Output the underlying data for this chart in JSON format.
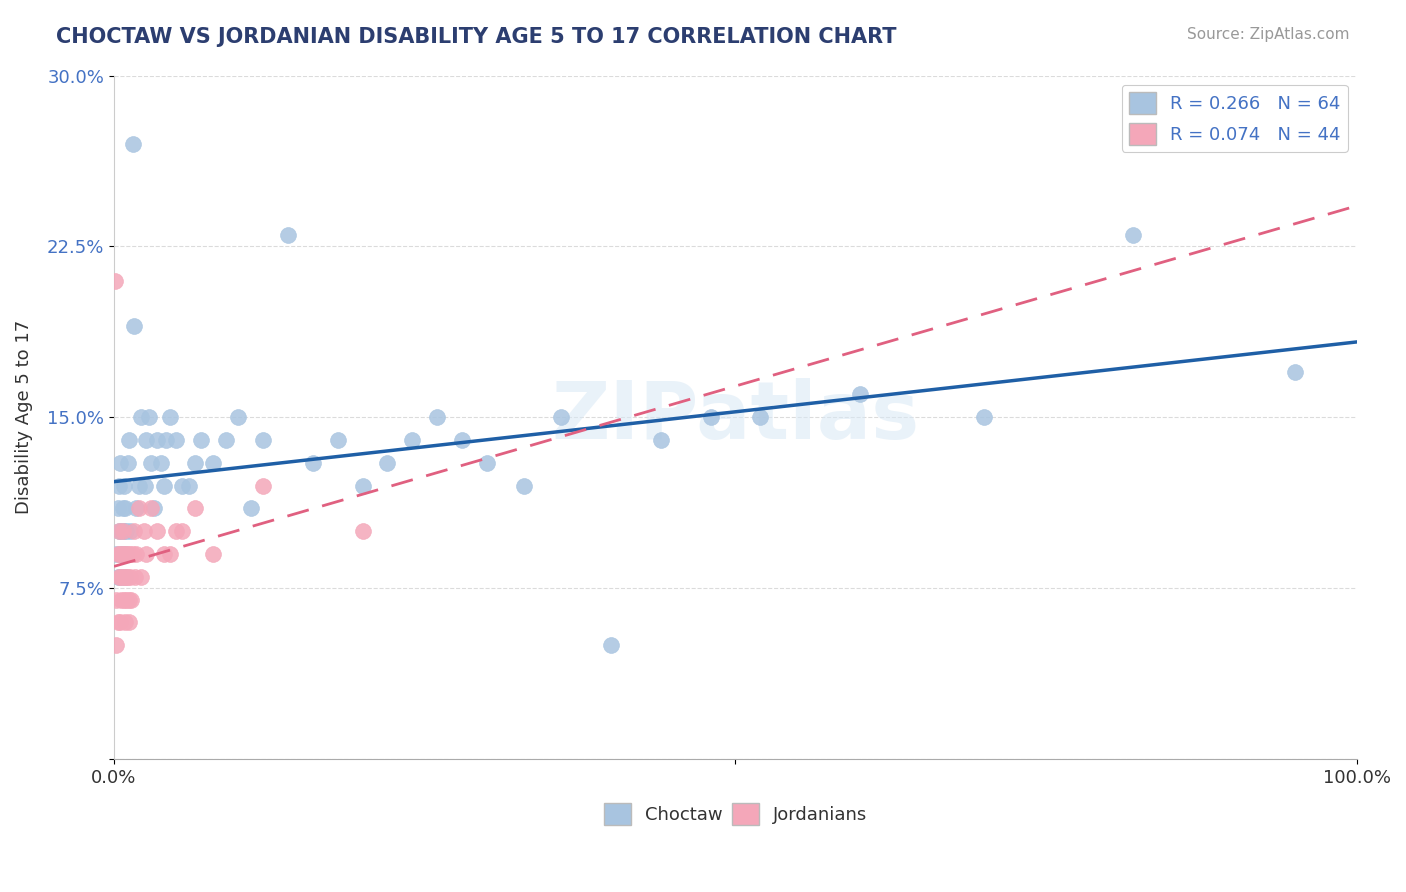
{
  "title": "CHOCTAW VS JORDANIAN DISABILITY AGE 5 TO 17 CORRELATION CHART",
  "source": "Source: ZipAtlas.com",
  "xlabel": "",
  "ylabel": "Disability Age 5 to 17",
  "xlim": [
    0,
    1.0
  ],
  "ylim": [
    0,
    0.3
  ],
  "choctaw_R": 0.266,
  "choctaw_N": 64,
  "jordanian_R": 0.074,
  "jordanian_N": 44,
  "choctaw_color": "#a8c4e0",
  "choctaw_line_color": "#1f5fa6",
  "jordanian_color": "#f4a7b9",
  "jordanian_line_color": "#e06080",
  "background_color": "#ffffff",
  "watermark": "ZIPatlas",
  "choctaw_x": [
    0.002,
    0.003,
    0.003,
    0.004,
    0.004,
    0.005,
    0.005,
    0.006,
    0.006,
    0.007,
    0.007,
    0.008,
    0.008,
    0.009,
    0.009,
    0.01,
    0.01,
    0.011,
    0.012,
    0.013,
    0.015,
    0.016,
    0.018,
    0.02,
    0.022,
    0.025,
    0.026,
    0.028,
    0.03,
    0.032,
    0.035,
    0.038,
    0.04,
    0.042,
    0.045,
    0.05,
    0.055,
    0.06,
    0.065,
    0.07,
    0.08,
    0.09,
    0.1,
    0.11,
    0.12,
    0.14,
    0.16,
    0.18,
    0.2,
    0.22,
    0.24,
    0.26,
    0.28,
    0.3,
    0.33,
    0.36,
    0.4,
    0.44,
    0.48,
    0.52,
    0.6,
    0.7,
    0.82,
    0.95
  ],
  "choctaw_y": [
    0.09,
    0.11,
    0.08,
    0.1,
    0.12,
    0.09,
    0.13,
    0.1,
    0.08,
    0.11,
    0.09,
    0.1,
    0.12,
    0.08,
    0.11,
    0.1,
    0.09,
    0.13,
    0.14,
    0.1,
    0.27,
    0.19,
    0.11,
    0.12,
    0.15,
    0.12,
    0.14,
    0.15,
    0.13,
    0.11,
    0.14,
    0.13,
    0.12,
    0.14,
    0.15,
    0.14,
    0.12,
    0.12,
    0.13,
    0.14,
    0.13,
    0.14,
    0.15,
    0.11,
    0.14,
    0.23,
    0.13,
    0.14,
    0.12,
    0.13,
    0.14,
    0.15,
    0.14,
    0.13,
    0.12,
    0.15,
    0.05,
    0.14,
    0.15,
    0.15,
    0.16,
    0.15,
    0.23,
    0.17
  ],
  "jordanian_x": [
    0.001,
    0.002,
    0.002,
    0.003,
    0.003,
    0.004,
    0.004,
    0.005,
    0.005,
    0.006,
    0.006,
    0.007,
    0.007,
    0.008,
    0.008,
    0.009,
    0.009,
    0.01,
    0.01,
    0.011,
    0.011,
    0.012,
    0.012,
    0.013,
    0.013,
    0.014,
    0.015,
    0.016,
    0.017,
    0.018,
    0.02,
    0.022,
    0.024,
    0.026,
    0.03,
    0.035,
    0.04,
    0.045,
    0.05,
    0.055,
    0.065,
    0.08,
    0.12,
    0.2
  ],
  "jordanian_y": [
    0.21,
    0.05,
    0.07,
    0.06,
    0.09,
    0.08,
    0.1,
    0.06,
    0.09,
    0.08,
    0.07,
    0.09,
    0.1,
    0.08,
    0.07,
    0.09,
    0.06,
    0.08,
    0.07,
    0.09,
    0.08,
    0.07,
    0.06,
    0.09,
    0.08,
    0.07,
    0.09,
    0.1,
    0.08,
    0.09,
    0.11,
    0.08,
    0.1,
    0.09,
    0.11,
    0.1,
    0.09,
    0.09,
    0.1,
    0.1,
    0.11,
    0.09,
    0.12,
    0.1
  ]
}
